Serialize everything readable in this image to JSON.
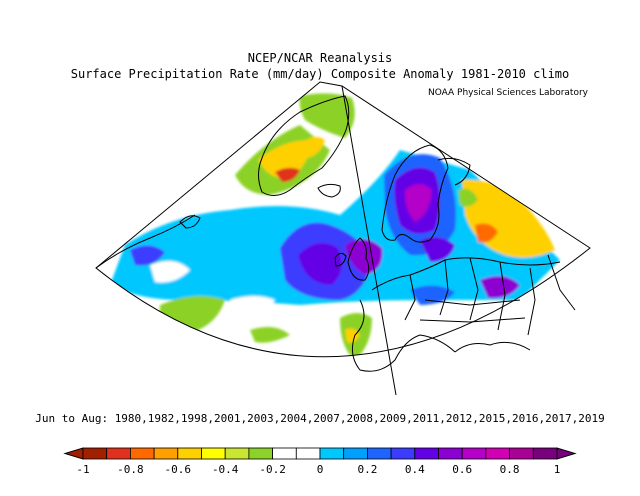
{
  "header": {
    "title_line1": "NCEP/NCAR Reanalysis",
    "title_line2": "Surface Precipitation Rate (mm/day) Composite Anomaly 1981-2010 climo",
    "credit": "NOAA Physical Sciences Laboratory"
  },
  "footer": {
    "period": "Jun to Aug: 1980,1982,1998,2001,2003,2004,2007,2008,2009,2011,2012,2015,2016,2017,2019"
  },
  "map": {
    "projection": "conic",
    "region": "North Atlantic and Europe"
  },
  "colorbar": {
    "min": -1,
    "max": 1,
    "tick_labels": [
      "-1",
      "-0.8",
      "-0.6",
      "-0.4",
      "-0.2",
      "0",
      "0.2",
      "0.4",
      "0.6",
      "0.8",
      "1"
    ],
    "colors": [
      "#a02000",
      "#e0301e",
      "#ff6a00",
      "#ffa000",
      "#ffd000",
      "#ffff00",
      "#c8e632",
      "#8cd228",
      "#ffffff",
      "#ffffff",
      "#00c8ff",
      "#00a0ff",
      "#1e64ff",
      "#3c3cff",
      "#6400e6",
      "#8c00d2",
      "#b400c8",
      "#d200b4",
      "#aa0096",
      "#78007d"
    ]
  }
}
